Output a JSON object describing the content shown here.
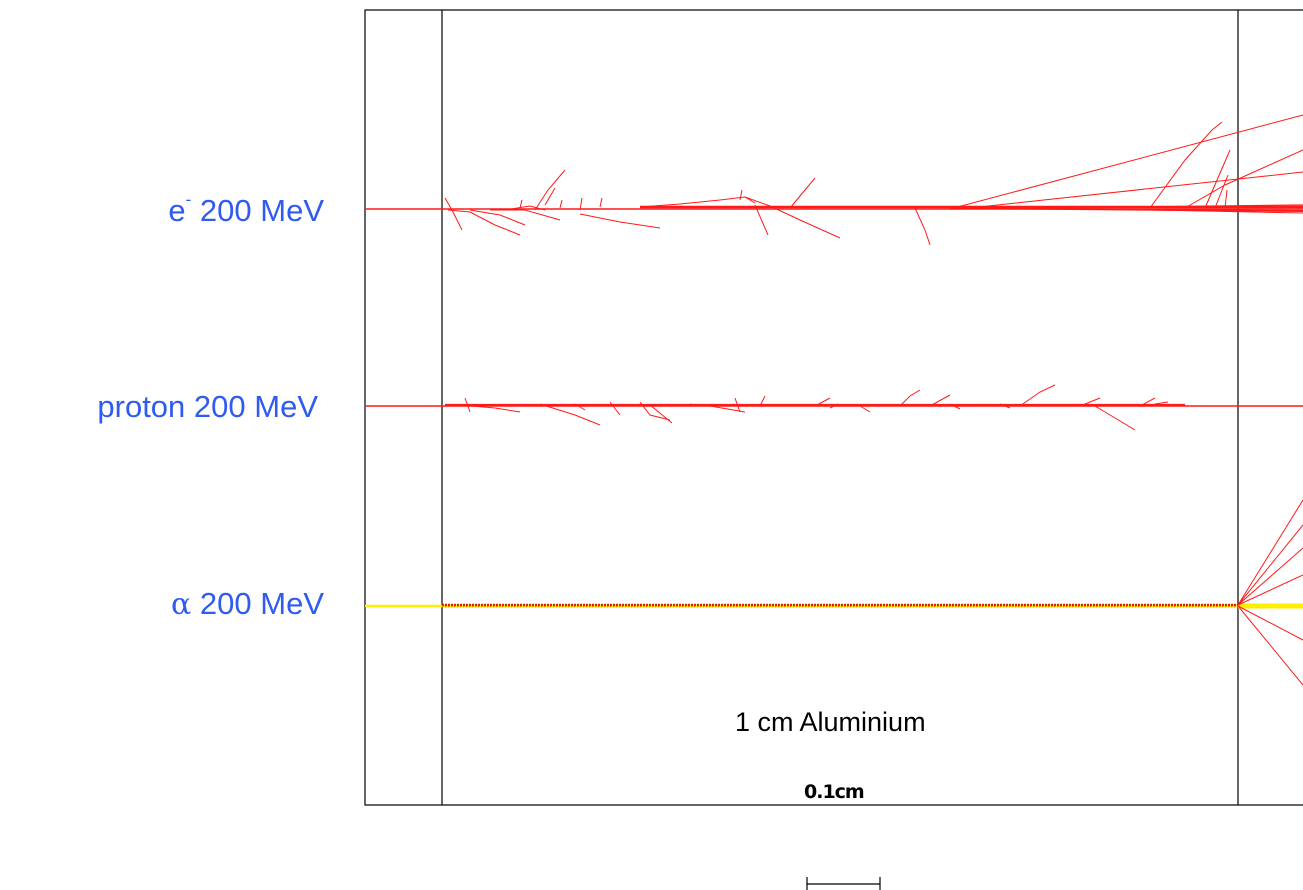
{
  "particles": [
    {
      "id": "electron",
      "name": "e",
      "superscript": "-",
      "energy": "200 MeV",
      "track_color": "#ff1a1a"
    },
    {
      "id": "proton",
      "name": "proton",
      "energy": "200 MeV",
      "track_color": "#ff1a1a"
    },
    {
      "id": "alpha",
      "name": "α",
      "energy": "200 MeV",
      "track_color": "#ffee00"
    }
  ],
  "material_label": "1 cm Aluminium",
  "scale_bar_label": "0.1cm",
  "colors": {
    "label": "#2f5bf0",
    "track": "#ff1a1a",
    "alpha_beam": "#ffee00"
  }
}
